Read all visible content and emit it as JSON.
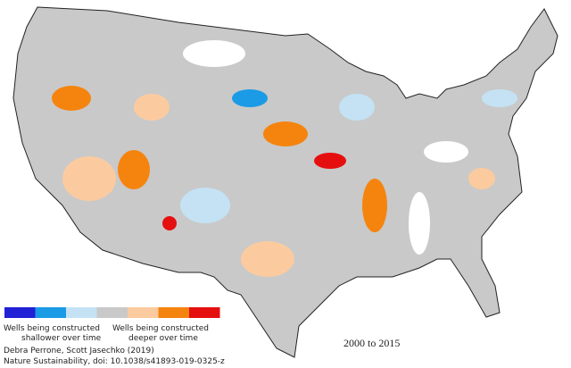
{
  "legend": {
    "colors": [
      "#2121d6",
      "#1b9be6",
      "#c4e2f4",
      "#c9c9c9",
      "#fbcb9f",
      "#f5840f",
      "#e60f0f"
    ],
    "left_label": [
      "Wells being constructed",
      "shallower over time"
    ],
    "right_label": [
      "Wells being constructed",
      "deeper over time"
    ]
  },
  "period": "2000 to 2015",
  "credits": [
    "Debra Perrone, Scott Jasechko (2019)",
    "Nature Sustainability, doi: 10.1038/s41893-019-0325-z"
  ]
}
